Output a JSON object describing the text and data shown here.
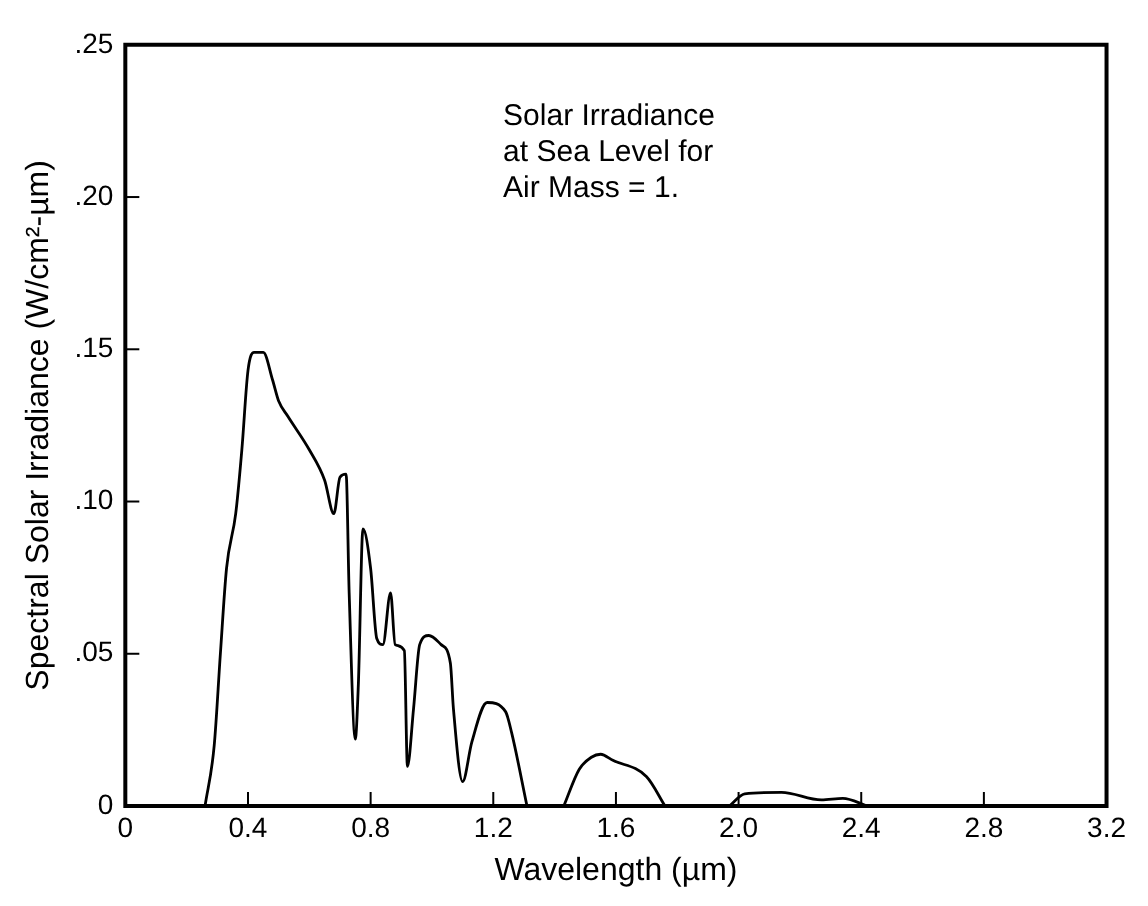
{
  "chart_data": {
    "type": "line",
    "xlabel": "Wavelength (µm)",
    "ylabel": "Spectral Solar Irradiance (W/cm²-µm)",
    "annotations": [
      "Solar Irradiance\nat Sea Level for\nAir Mass = 1."
    ],
    "series": [
      {
        "color": "#000000",
        "x": [
          0.26,
          0.29,
          0.31,
          0.33,
          0.36,
          0.38,
          0.4,
          0.42,
          0.45,
          0.48,
          0.5,
          0.53,
          0.6,
          0.65,
          0.68,
          0.7,
          0.72,
          0.73,
          0.75,
          0.76,
          0.775,
          0.8,
          0.82,
          0.84,
          0.865,
          0.88,
          0.91,
          0.92,
          0.94,
          0.96,
          0.99,
          1.03,
          1.06,
          1.07,
          1.1,
          1.13,
          1.18,
          1.24,
          1.26,
          1.31,
          1.42,
          1.43,
          1.48,
          1.52,
          1.55,
          1.59,
          1.7,
          1.76,
          1.93,
          1.97,
          2.02,
          2.14,
          2.27,
          2.34,
          2.42
        ],
        "values": [
          0,
          0.02,
          0.05,
          0.078,
          0.096,
          0.117,
          0.143,
          0.149,
          0.149,
          0.14,
          0.133,
          0.128,
          0.117,
          0.107,
          0.096,
          0.108,
          0.109,
          0.07,
          0.022,
          0.04,
          0.091,
          0.078,
          0.055,
          0.053,
          0.07,
          0.053,
          0.051,
          0.013,
          0.032,
          0.053,
          0.056,
          0.053,
          0.047,
          0.032,
          0.008,
          0.021,
          0.034,
          0.031,
          0.024,
          0,
          null,
          0,
          0.012,
          0.016,
          0.017,
          0.015,
          0.0096,
          0,
          null,
          0,
          0.004,
          0.0045,
          0.002,
          0.0025,
          0
        ]
      }
    ],
    "xlim": [
      0,
      3.2
    ],
    "xticks": [
      0,
      0.4,
      0.8,
      1.2,
      1.6,
      {
        "value": 2,
        "label": "2.0"
      },
      2.4,
      2.8,
      3.2
    ],
    "ylim": [
      0,
      0.25
    ],
    "yticks": [
      {
        "value": 0,
        "label": "0"
      },
      {
        "value": 0.05,
        "label": ".05"
      },
      {
        "value": 0.1,
        "label": ".10"
      },
      {
        "value": 0.15,
        "label": ".15"
      },
      {
        "value": 0.2,
        "label": ".20"
      },
      {
        "value": 0.25,
        "label": ".25"
      }
    ],
    "grid": false,
    "legend": false,
    "marker": "none",
    "line_style": "solid"
  }
}
